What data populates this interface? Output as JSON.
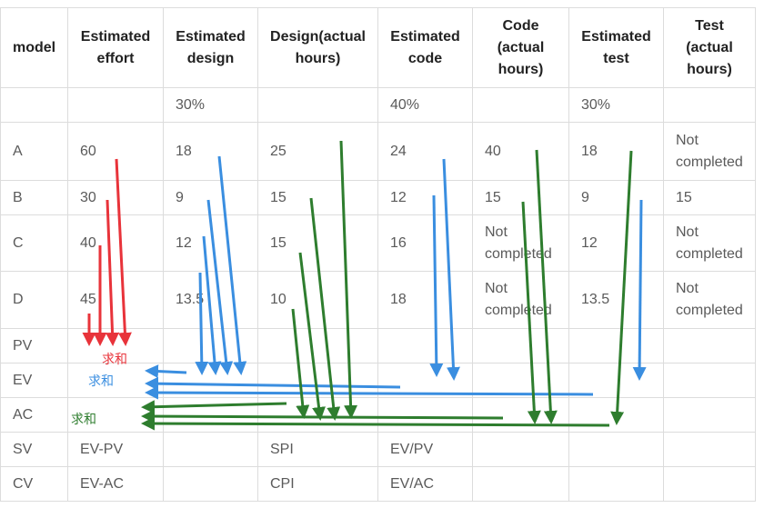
{
  "table": {
    "headers": [
      "model",
      "Estimated effort",
      "Estimated design",
      "Design(actual hours)",
      "Estimated code",
      "Code (actual hours)",
      "Estimated test",
      "Test (actual hours)"
    ],
    "rows": [
      [
        "",
        "",
        "30%",
        "",
        "40%",
        "",
        "30%",
        ""
      ],
      [
        "A",
        "60",
        "18",
        "25",
        "24",
        "40",
        "18",
        "Not completed"
      ],
      [
        "B",
        "30",
        "9",
        "15",
        "12",
        "15",
        "9",
        "15"
      ],
      [
        "C",
        "40",
        "12",
        "15",
        "16",
        "Not completed",
        "12",
        "Not completed"
      ],
      [
        "D",
        "45",
        "13.5",
        "10",
        "18",
        "Not completed",
        "13.5",
        "Not completed"
      ],
      [
        "PV",
        "",
        "",
        "",
        "",
        "",
        "",
        ""
      ],
      [
        "EV",
        "",
        "",
        "",
        "",
        "",
        "",
        ""
      ],
      [
        "AC",
        "",
        "",
        "",
        "",
        "",
        "",
        ""
      ],
      [
        "SV",
        "EV-PV",
        "",
        "SPI",
        "EV/PV",
        "",
        "",
        ""
      ],
      [
        "CV",
        "EV-AC",
        "",
        "CPI",
        "EV/AC",
        "",
        "",
        ""
      ]
    ]
  },
  "annotations": {
    "red_label": "求和",
    "blue_label": "求和",
    "green_label": "求和",
    "colors": {
      "red": "#e8333a",
      "blue": "#3a8ee0",
      "green": "#2e7d2e"
    }
  }
}
